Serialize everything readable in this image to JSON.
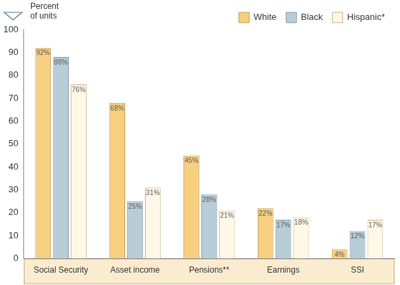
{
  "chart_data": {
    "type": "bar",
    "y_label": "Percent of units",
    "categories": [
      "Social Security",
      "Asset income",
      "Pensions**",
      "Earnings",
      "SSI"
    ],
    "series": [
      {
        "name": "White",
        "color": "#f7cf80",
        "values": [
          92,
          68,
          45,
          22,
          4
        ],
        "value_labels": [
          "92%",
          "68%",
          "45%",
          "22%",
          "4%"
        ]
      },
      {
        "name": "Black",
        "color": "#b9cdd7",
        "values": [
          88,
          25,
          28,
          17,
          12
        ],
        "value_labels": [
          "88%",
          "25%",
          "28%",
          "17%",
          "12%"
        ]
      },
      {
        "name": "Hispanic*",
        "color": "#fff8e8",
        "values": [
          76,
          31,
          21,
          18,
          17
        ],
        "value_labels": [
          "76%",
          "31%",
          "21%",
          "18%",
          "17%"
        ]
      }
    ],
    "ylim": [
      0,
      100
    ],
    "yticks": [
      0,
      10,
      20,
      30,
      40,
      50,
      60,
      70,
      80,
      90,
      100
    ],
    "grid": false,
    "legend": "upper right",
    "data_labels": true
  }
}
